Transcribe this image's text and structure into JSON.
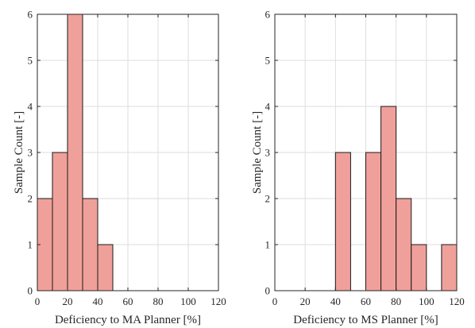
{
  "chart_data": [
    {
      "type": "bar",
      "xlabel": "Deficiency to MA Planner [%]",
      "ylabel": "Sample Count [-]",
      "xlim": [
        0,
        120
      ],
      "ylim": [
        0,
        6
      ],
      "xticks": [
        0,
        20,
        40,
        60,
        80,
        100,
        120
      ],
      "yticks": [
        0,
        1,
        2,
        3,
        4,
        5,
        6
      ],
      "bin_width": 10,
      "bins": [
        {
          "start": 0,
          "end": 10,
          "count": 2
        },
        {
          "start": 10,
          "end": 20,
          "count": 3
        },
        {
          "start": 20,
          "end": 30,
          "count": 6
        },
        {
          "start": 30,
          "end": 40,
          "count": 2
        },
        {
          "start": 40,
          "end": 50,
          "count": 1
        }
      ],
      "grid": true,
      "bar_color": "#f0a09a",
      "edge_color": "#1a1a1a"
    },
    {
      "type": "bar",
      "xlabel": "Deficiency to MS Planner [%]",
      "ylabel": "Sample Count [-]",
      "xlim": [
        0,
        120
      ],
      "ylim": [
        0,
        6
      ],
      "xticks": [
        0,
        20,
        40,
        60,
        80,
        100,
        120
      ],
      "yticks": [
        0,
        1,
        2,
        3,
        4,
        5,
        6
      ],
      "bin_width": 10,
      "bins": [
        {
          "start": 40,
          "end": 50,
          "count": 3
        },
        {
          "start": 60,
          "end": 70,
          "count": 3
        },
        {
          "start": 70,
          "end": 80,
          "count": 4
        },
        {
          "start": 80,
          "end": 90,
          "count": 2
        },
        {
          "start": 90,
          "end": 100,
          "count": 1
        },
        {
          "start": 110,
          "end": 120,
          "count": 1
        }
      ],
      "grid": true,
      "bar_color": "#f0a09a",
      "edge_color": "#1a1a1a"
    }
  ]
}
